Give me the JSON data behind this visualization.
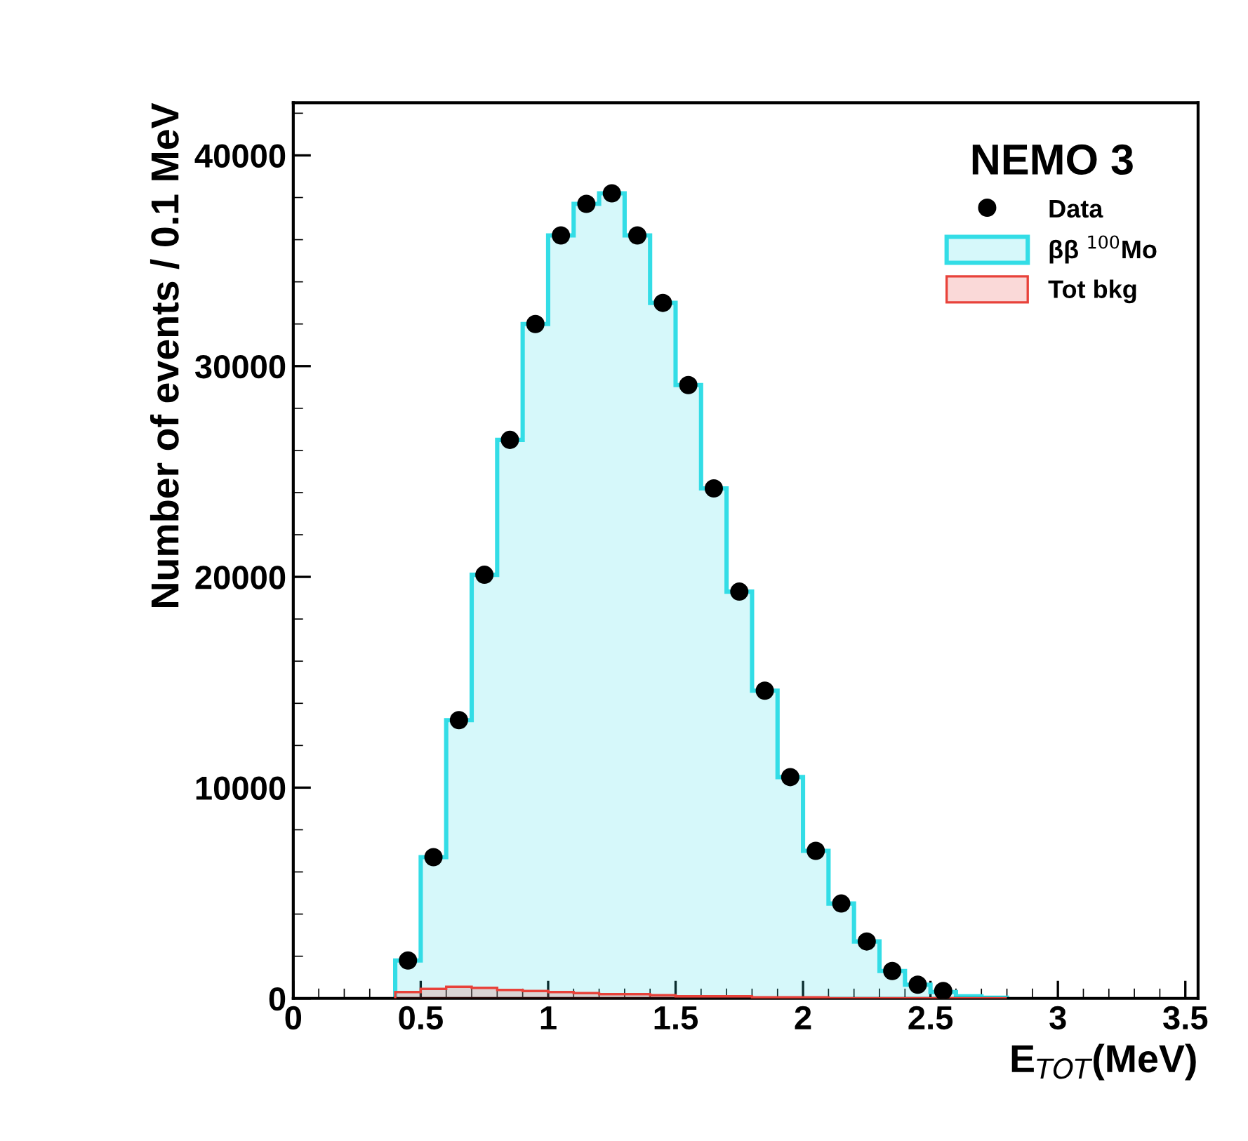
{
  "chart_data": {
    "type": "histogram",
    "xlabel": "E$_{TOT}$(MeV)",
    "ylabel": "Number of events / 0.1 MeV",
    "legend_title": "NEMO 3",
    "bins": [
      0.4,
      0.5,
      0.6,
      0.7,
      0.8,
      0.9,
      1.0,
      1.1,
      1.2,
      1.3,
      1.4,
      1.5,
      1.6,
      1.7,
      1.8,
      1.9,
      2.0,
      2.1,
      2.2,
      2.3,
      2.4,
      2.5,
      2.6,
      2.7,
      2.8
    ],
    "series": [
      {
        "name": "Data",
        "type": "scatter",
        "color": "#000000",
        "marker": "circle",
        "x": [
          0.45,
          0.55,
          0.65,
          0.75,
          0.85,
          0.95,
          1.05,
          1.15,
          1.25,
          1.35,
          1.45,
          1.55,
          1.65,
          1.75,
          1.85,
          1.95,
          2.05,
          2.15,
          2.25,
          2.35,
          2.45,
          2.55
        ],
        "values": [
          1800,
          6700,
          13200,
          20100,
          26500,
          32000,
          36200,
          37700,
          38200,
          36200,
          33000,
          29100,
          24200,
          19300,
          14600,
          10500,
          7000,
          4500,
          2700,
          1300,
          650,
          350
        ]
      },
      {
        "name": "ββ $^{100}$Mo",
        "color": "#33dde6",
        "values": [
          1800,
          6700,
          13200,
          20100,
          26500,
          32000,
          36200,
          37700,
          38200,
          36200,
          33000,
          29100,
          24200,
          19300,
          14600,
          10500,
          7000,
          4500,
          2700,
          1300,
          650,
          300,
          100,
          30
        ]
      },
      {
        "name": "Tot bkg",
        "color": "#e8423a",
        "values": [
          300,
          450,
          550,
          500,
          400,
          350,
          300,
          250,
          200,
          200,
          150,
          100,
          100,
          100,
          50,
          50,
          50,
          0,
          0,
          0,
          0,
          0,
          0,
          0
        ]
      }
    ],
    "xlim": [
      0,
      3.55
    ],
    "ylim": [
      0,
      42500
    ],
    "xticks": [
      0,
      0.5,
      1,
      1.5,
      2,
      2.5,
      3,
      3.5
    ],
    "yticks": [
      0,
      10000,
      20000,
      30000,
      40000
    ],
    "grid": false,
    "legend": "top right"
  }
}
